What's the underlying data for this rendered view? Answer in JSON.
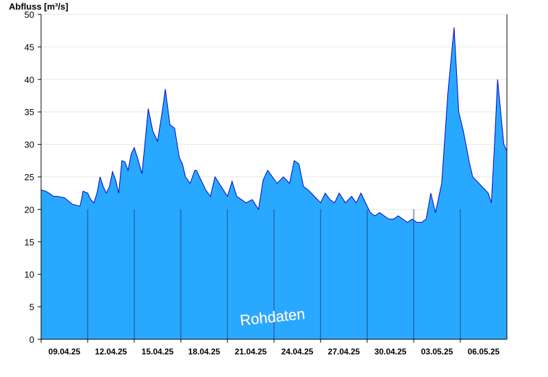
{
  "chart_data": {
    "type": "area",
    "ylabel": "Abfluss [m³/s]",
    "ylim": [
      0,
      50
    ],
    "yticks": [
      0,
      5,
      10,
      15,
      20,
      25,
      30,
      35,
      40,
      45,
      50
    ],
    "xticks": [
      "09.04.25",
      "12.04.25",
      "15.04.25",
      "18.04.25",
      "21.04.25",
      "24.04.25",
      "27.04.25",
      "30.04.25",
      "03.05.25",
      "06.05.25"
    ],
    "xrange_days": [
      0,
      30
    ],
    "grid": true,
    "fill_color": "#29a8ff",
    "line_color": "#0000cc",
    "watermark": "Rohdaten",
    "series": [
      {
        "x": [
          0,
          0.3,
          0.5,
          0.8,
          1.0,
          1.5,
          2.0,
          2.5,
          2.6,
          2.7,
          3.0,
          3.2,
          3.4,
          3.6,
          3.8,
          4.0,
          4.2,
          4.4,
          4.6,
          4.8,
          5.0,
          5.2,
          5.4,
          5.6,
          5.8,
          6.0,
          6.2,
          6.5,
          6.9,
          7.2,
          7.5,
          7.8,
          8.0,
          8.3,
          8.6,
          8.9,
          9.1,
          9.3,
          9.6,
          9.9,
          10.0,
          10.3,
          10.6,
          10.9,
          11.2,
          11.6,
          12.0,
          12.3,
          12.6,
          12.9,
          13.2,
          13.6,
          14.0,
          14.3,
          14.6,
          14.9,
          15.2,
          15.6,
          16.0,
          16.3,
          16.6,
          16.9,
          17.2,
          17.6,
          18.0,
          18.3,
          18.6,
          18.9,
          19.2,
          19.6,
          20.0,
          20.3,
          20.6,
          20.9,
          21.2,
          21.5,
          21.8,
          22.1,
          22.4,
          22.7,
          23.0,
          23.3,
          23.6,
          23.9,
          24.2,
          24.5,
          24.8,
          25.1,
          25.4,
          25.8,
          26.2,
          26.6,
          26.9,
          27.2,
          27.4,
          27.6,
          27.8,
          28.0,
          28.2,
          28.4,
          28.6,
          28.8,
          29.0,
          29.2,
          29.4,
          29.6,
          29.8,
          30.0
        ],
        "y": [
          23,
          22.8,
          22.5,
          22,
          22,
          21.8,
          20.8,
          20.5,
          21.5,
          22.8,
          22.5,
          21.5,
          21,
          22.5,
          25,
          23.5,
          22.5,
          23.5,
          25.8,
          24.5,
          22.5,
          27.5,
          27.3,
          26,
          28.5,
          29.5,
          28,
          25.5,
          35.5,
          32,
          30.5,
          35,
          38.5,
          33,
          32.5,
          28,
          27,
          25,
          24,
          26,
          26,
          24.5,
          23,
          22,
          25,
          23.5,
          22,
          24.3,
          22,
          21.5,
          21,
          21.5,
          20,
          24.5,
          26,
          25,
          24,
          25,
          24,
          27.5,
          27,
          23.5,
          23,
          22,
          21,
          22.5,
          21.5,
          21,
          22.5,
          21,
          22,
          21,
          22.5,
          21,
          19.5,
          19,
          19.5,
          19,
          18.5,
          18.5,
          19,
          18.5,
          18,
          18.5,
          18,
          18,
          18.5,
          22.5,
          19.5,
          24,
          38,
          48,
          35,
          32,
          29.5,
          27,
          25,
          24.5,
          24,
          23.5,
          23,
          22.5,
          21,
          30,
          40,
          35,
          30,
          29
        ]
      }
    ]
  }
}
